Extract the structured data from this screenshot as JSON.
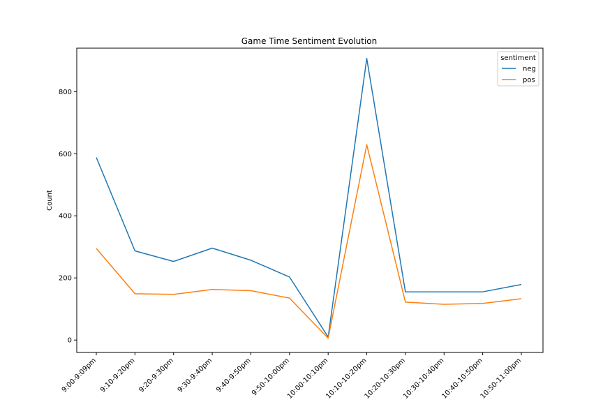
{
  "chart_data": {
    "type": "line",
    "title": "Game Time Sentiment Evolution",
    "xlabel": "",
    "ylabel": "Count",
    "categories": [
      "9:00-9:09pm",
      "9:10-9:20pm",
      "9:20-9:30pm",
      "9:30-9:40pm",
      "9:40-9:50pm",
      "9:50-10:00pm",
      "10:00-10:10pm",
      "10:10-10:20pm",
      "10:20-10:30pm",
      "10:30-10:40pm",
      "10:40-10:50pm",
      "10:50-11:00pm"
    ],
    "series": [
      {
        "name": "neg",
        "color": "#1f77b4",
        "values": [
          588,
          287,
          253,
          296,
          257,
          203,
          10,
          907,
          155,
          155,
          155,
          179
        ]
      },
      {
        "name": "pos",
        "color": "#ff7f0e",
        "values": [
          295,
          149,
          147,
          163,
          159,
          135,
          6,
          629,
          122,
          115,
          118,
          133
        ]
      }
    ],
    "ylim": [
      -40,
      940
    ],
    "yticks": [
      0,
      200,
      400,
      600,
      800
    ],
    "grid": false,
    "legend": {
      "title": "sentiment",
      "position": "top-right"
    }
  }
}
